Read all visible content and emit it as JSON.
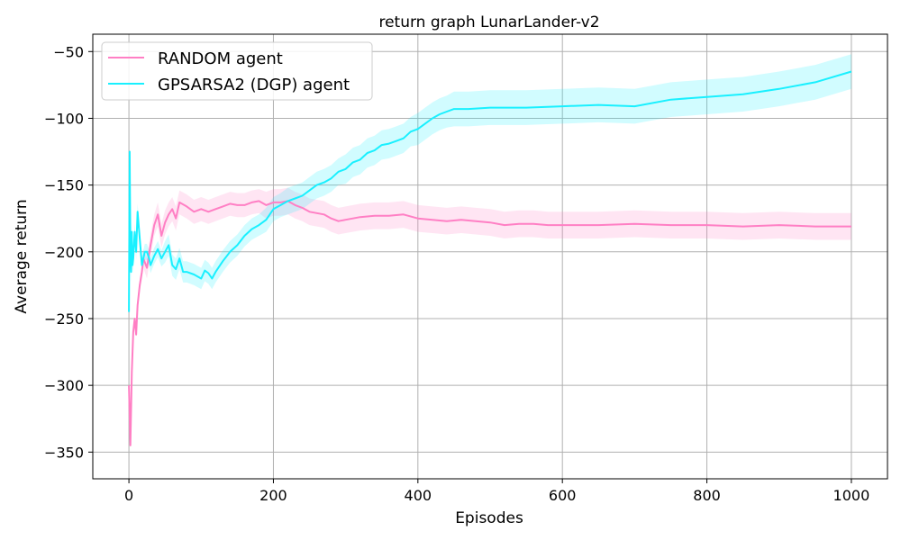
{
  "chart_data": {
    "type": "line",
    "title": "return graph LunarLander-v2",
    "xlabel": "Episodes",
    "ylabel": "Average return",
    "xlim": [
      -50,
      1050
    ],
    "ylim": [
      -370,
      -37
    ],
    "xticks": [
      0,
      200,
      400,
      600,
      800,
      1000
    ],
    "yticks": [
      -350,
      -300,
      -250,
      -200,
      -150,
      -100,
      -50
    ],
    "xtick_labels": [
      "0",
      "200",
      "400",
      "600",
      "800",
      "1000"
    ],
    "ytick_labels": [
      "−350",
      "−300",
      "−250",
      "−200",
      "−150",
      "−100",
      "−50"
    ],
    "grid": true,
    "legend_position": "top-left",
    "series": [
      {
        "name": "RANDOM agent",
        "color": "#ff7fc4",
        "band_color": "#ff7fc4",
        "x": [
          0,
          2,
          4,
          6,
          8,
          10,
          12,
          15,
          18,
          20,
          25,
          30,
          35,
          40,
          45,
          50,
          55,
          60,
          65,
          70,
          80,
          90,
          100,
          110,
          120,
          130,
          140,
          150,
          160,
          170,
          180,
          190,
          200,
          210,
          220,
          230,
          240,
          250,
          260,
          270,
          280,
          290,
          300,
          320,
          340,
          360,
          380,
          400,
          420,
          440,
          460,
          480,
          500,
          520,
          540,
          560,
          580,
          600,
          650,
          700,
          750,
          800,
          850,
          900,
          950,
          1000
        ],
        "values": [
          -300,
          -345,
          -290,
          -260,
          -250,
          -262,
          -240,
          -225,
          -215,
          -205,
          -212,
          -195,
          -180,
          -172,
          -188,
          -178,
          -172,
          -168,
          -175,
          -163,
          -166,
          -170,
          -168,
          -170,
          -168,
          -166,
          -164,
          -165,
          -165,
          -163,
          -162,
          -165,
          -163,
          -163,
          -162,
          -165,
          -167,
          -170,
          -171,
          -172,
          -175,
          -177,
          -176,
          -174,
          -173,
          -173,
          -172,
          -175,
          -176,
          -177,
          -176,
          -177,
          -178,
          -180,
          -179,
          -179,
          -180,
          -180,
          -180,
          -179,
          -180,
          -180,
          -181,
          -180,
          -181,
          -181
        ],
        "band": [
          0,
          0,
          0,
          0,
          0,
          2,
          4,
          5,
          6,
          7,
          8,
          8,
          8,
          9,
          9,
          9,
          9,
          9,
          9,
          9,
          9,
          9,
          9,
          9,
          9,
          9,
          9,
          9,
          9,
          9,
          9,
          10,
          10,
          10,
          10,
          10,
          10,
          10,
          10,
          10,
          10,
          10,
          10,
          10,
          10,
          10,
          10,
          10,
          10,
          10,
          10,
          10,
          10,
          10,
          10,
          10,
          10,
          10,
          10,
          10,
          10,
          10,
          10,
          10,
          10,
          10
        ]
      },
      {
        "name": "GPSARSA2 (DGP) agent",
        "color": "#19f0ff",
        "band_color": "#19f0ff",
        "x": [
          0,
          1,
          2,
          3,
          4,
          5,
          6,
          8,
          10,
          12,
          15,
          18,
          20,
          22,
          25,
          28,
          30,
          35,
          40,
          45,
          50,
          55,
          60,
          65,
          70,
          75,
          80,
          90,
          100,
          105,
          110,
          115,
          120,
          130,
          140,
          150,
          160,
          170,
          180,
          190,
          200,
          210,
          220,
          230,
          240,
          250,
          260,
          270,
          280,
          290,
          300,
          310,
          320,
          330,
          340,
          350,
          360,
          370,
          380,
          390,
          400,
          410,
          420,
          430,
          440,
          450,
          470,
          500,
          550,
          600,
          650,
          700,
          750,
          800,
          850,
          900,
          950,
          1000
        ],
        "values": [
          -245,
          -125,
          -195,
          -215,
          -185,
          -210,
          -205,
          -185,
          -200,
          -170,
          -190,
          -210,
          -205,
          -200,
          -200,
          -205,
          -210,
          -203,
          -198,
          -205,
          -200,
          -195,
          -210,
          -213,
          -205,
          -215,
          -215,
          -217,
          -220,
          -214,
          -216,
          -220,
          -215,
          -207,
          -200,
          -195,
          -188,
          -183,
          -180,
          -176,
          -168,
          -165,
          -162,
          -160,
          -158,
          -154,
          -150,
          -148,
          -145,
          -140,
          -138,
          -133,
          -131,
          -126,
          -124,
          -120,
          -119,
          -117,
          -115,
          -110,
          -108,
          -104,
          -100,
          -97,
          -95,
          -93,
          -93,
          -92,
          -92,
          -91,
          -90,
          -91,
          -86,
          -84,
          -82,
          -78,
          -73,
          -65
        ],
        "band": [
          0,
          0,
          8,
          8,
          8,
          6,
          6,
          6,
          6,
          6,
          6,
          6,
          6,
          6,
          6,
          6,
          6,
          6,
          6,
          6,
          8,
          8,
          8,
          8,
          8,
          8,
          8,
          8,
          8,
          8,
          8,
          8,
          8,
          8,
          8,
          8,
          8,
          8,
          8,
          9,
          9,
          9,
          10,
          10,
          10,
          10,
          10,
          10,
          10,
          10,
          11,
          11,
          11,
          11,
          11,
          11,
          11,
          11,
          11,
          11,
          12,
          12,
          12,
          12,
          12,
          13,
          13,
          13,
          13,
          13,
          13,
          13,
          13,
          13,
          13,
          13,
          13,
          13
        ]
      }
    ]
  }
}
